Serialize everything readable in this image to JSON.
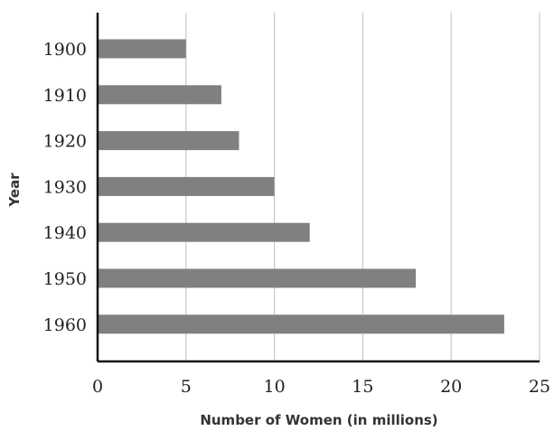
{
  "chart_data": {
    "type": "bar",
    "orientation": "horizontal",
    "categories": [
      "1900",
      "1910",
      "1920",
      "1930",
      "1940",
      "1950",
      "1960"
    ],
    "values": [
      5,
      7,
      8,
      10,
      12,
      18,
      23
    ],
    "xlabel": "Number of Women (in millions)",
    "ylabel": "Year",
    "xlim": [
      0,
      25
    ],
    "xticks": [
      "0",
      "5",
      "10",
      "15",
      "20",
      "25"
    ],
    "grid": true,
    "bar_color": "#808080"
  }
}
